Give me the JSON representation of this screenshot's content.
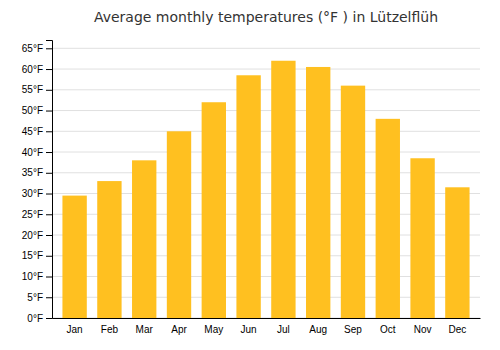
{
  "chart_data": {
    "type": "bar",
    "title": "Average monthly temperatures (°F ) in Lützelflüh",
    "categories": [
      "Jan",
      "Feb",
      "Mar",
      "Apr",
      "May",
      "Jun",
      "Jul",
      "Aug",
      "Sep",
      "Oct",
      "Nov",
      "Dec"
    ],
    "values": [
      29.5,
      33.0,
      38.0,
      45.0,
      52.0,
      58.5,
      62.0,
      60.5,
      56.0,
      48.0,
      38.5,
      31.5
    ],
    "color": "#FFC020",
    "ylim": [
      0,
      67
    ],
    "yticks": [
      {
        "value": 0,
        "label": "0°F"
      },
      {
        "value": 5,
        "label": "5°F"
      },
      {
        "value": 10,
        "label": "10°F"
      },
      {
        "value": 15,
        "label": "15°F"
      },
      {
        "value": 20,
        "label": "20°F"
      },
      {
        "value": 25,
        "label": "25°F"
      },
      {
        "value": 30,
        "label": "30°F"
      },
      {
        "value": 35,
        "label": "35°F"
      },
      {
        "value": 40,
        "label": "40°F"
      },
      {
        "value": 45,
        "label": "45°F"
      },
      {
        "value": 50,
        "label": "50°F"
      },
      {
        "value": 55,
        "label": "55°F"
      },
      {
        "value": 60,
        "label": "60°F"
      },
      {
        "value": 65,
        "label": "65°F"
      }
    ],
    "grid": true
  }
}
